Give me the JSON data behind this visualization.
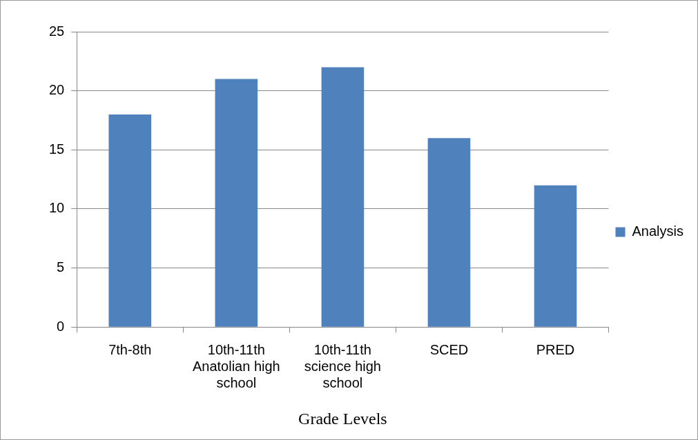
{
  "chart_data": {
    "type": "bar",
    "xlabel": "Grade Levels",
    "categories": [
      "7th-8th",
      "10th-11th Anatolian high school",
      "10th-11th science high school",
      "SCED",
      "PRED"
    ],
    "series": [
      {
        "name": "Analysis",
        "color": "#4f81bd",
        "values": [
          18,
          21,
          22,
          16,
          12
        ]
      }
    ],
    "ylim": [
      0,
      25
    ],
    "yticks": [
      0,
      5,
      10,
      15,
      20,
      25
    ],
    "grid": "y",
    "legend": "right"
  }
}
